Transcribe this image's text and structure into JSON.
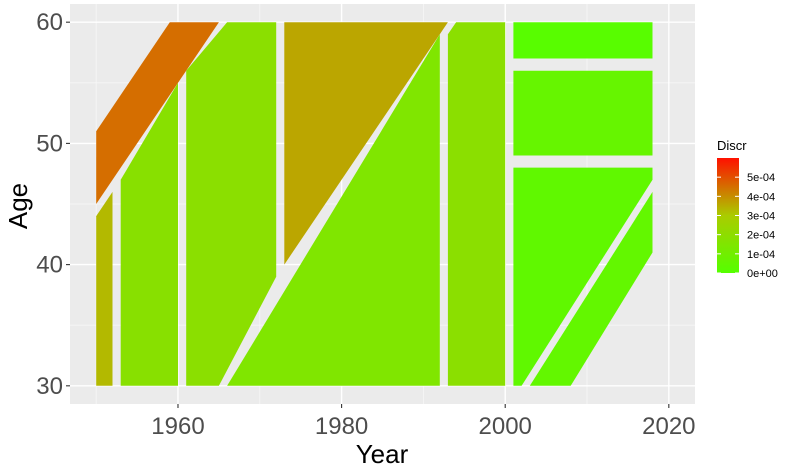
{
  "chart_data": {
    "type": "polygon",
    "xlabel": "Year",
    "ylabel": "Age",
    "xlim": [
      1946.8,
      2023.2
    ],
    "ylim": [
      28.5,
      61.5
    ],
    "x_ticks": [
      1960,
      1980,
      2000,
      2020
    ],
    "y_ticks": [
      30,
      40,
      50,
      60
    ],
    "grid": true,
    "legend": {
      "title": "Discr",
      "position": "right",
      "labels": [
        "5e-04",
        "4e-04",
        "3e-04",
        "2e-04",
        "1e-04",
        "0e+00"
      ],
      "values": [
        0.0005,
        0.0004,
        0.0003,
        0.0002,
        0.0001,
        0.0
      ],
      "range": [
        0.0,
        0.0006
      ]
    },
    "color_scale": [
      "#55ff00",
      "#aacc00",
      "#ff1000"
    ],
    "regions": [
      {
        "discr": 0.00045,
        "points": [
          [
            1950,
            45
          ],
          [
            1950,
            51
          ],
          [
            1959,
            60
          ],
          [
            1965,
            60
          ]
        ]
      },
      {
        "discr": 0.00033,
        "points": [
          [
            1950,
            30
          ],
          [
            1950,
            44
          ],
          [
            1952,
            46
          ],
          [
            1952,
            30
          ]
        ]
      },
      {
        "discr": 0.00018,
        "points": [
          [
            1953,
            30
          ],
          [
            1953,
            47
          ],
          [
            1960,
            55
          ],
          [
            1960,
            30
          ]
        ]
      },
      {
        "discr": 0.00019,
        "points": [
          [
            1961,
            30
          ],
          [
            1961,
            56
          ],
          [
            1966,
            60
          ],
          [
            1972,
            60
          ],
          [
            1972,
            39
          ],
          [
            1965,
            30
          ]
        ]
      },
      {
        "discr": 0.00036,
        "points": [
          [
            1973,
            40
          ],
          [
            1973,
            60
          ],
          [
            1993,
            60
          ]
        ]
      },
      {
        "discr": 0.00015,
        "points": [
          [
            1966,
            30
          ],
          [
            1992,
            59
          ],
          [
            1992,
            30
          ]
        ]
      },
      {
        "discr": 0.00019,
        "points": [
          [
            1993,
            30
          ],
          [
            1993,
            59
          ],
          [
            1994,
            60
          ],
          [
            2000,
            60
          ],
          [
            2000,
            30
          ]
        ]
      },
      {
        "discr": 1e-05,
        "points": [
          [
            2001,
            57
          ],
          [
            2001,
            60
          ],
          [
            2018,
            60
          ],
          [
            2018,
            57
          ]
        ]
      },
      {
        "discr": 6e-05,
        "points": [
          [
            2001,
            49
          ],
          [
            2001,
            56
          ],
          [
            2018,
            56
          ],
          [
            2018,
            49
          ]
        ]
      },
      {
        "discr": 4e-05,
        "points": [
          [
            2001,
            30
          ],
          [
            2001,
            48
          ],
          [
            2018,
            48
          ],
          [
            2018,
            47
          ],
          [
            2002,
            30
          ]
        ]
      },
      {
        "discr": 5e-05,
        "points": [
          [
            2003,
            30
          ],
          [
            2018,
            46
          ],
          [
            2018,
            41
          ],
          [
            2008,
            30
          ]
        ]
      }
    ]
  }
}
